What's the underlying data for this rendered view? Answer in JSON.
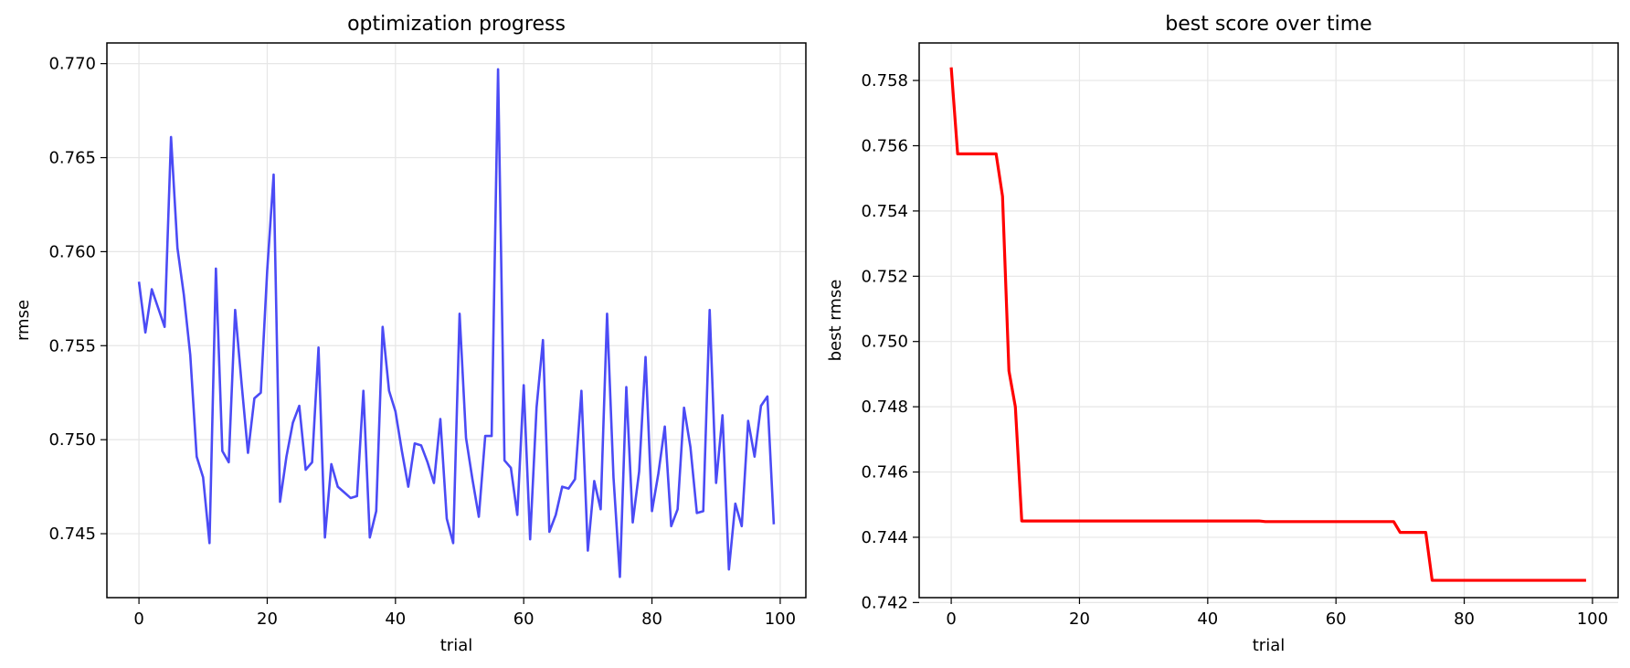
{
  "chart_data": [
    {
      "type": "line",
      "title": "optimization progress",
      "xlabel": "trial",
      "ylabel": "rmse",
      "xlim": [
        -5,
        104
      ],
      "ylim": [
        0.7416,
        0.7711
      ],
      "xticks": [
        0,
        20,
        40,
        60,
        80,
        100
      ],
      "yticks": [
        0.745,
        0.75,
        0.755,
        0.76,
        0.765,
        0.77
      ],
      "ytick_labels": [
        "0.745",
        "0.750",
        "0.755",
        "0.760",
        "0.765",
        "0.770"
      ],
      "grid": true,
      "line_color": "#4b4bf5",
      "x": [
        0,
        1,
        2,
        3,
        4,
        5,
        6,
        7,
        8,
        9,
        10,
        11,
        12,
        13,
        14,
        15,
        16,
        17,
        18,
        19,
        20,
        21,
        22,
        23,
        24,
        25,
        26,
        27,
        28,
        29,
        30,
        31,
        32,
        33,
        34,
        35,
        36,
        37,
        38,
        39,
        40,
        41,
        42,
        43,
        44,
        45,
        46,
        47,
        48,
        49,
        50,
        51,
        52,
        53,
        54,
        55,
        56,
        57,
        58,
        59,
        60,
        61,
        62,
        63,
        64,
        65,
        66,
        67,
        68,
        69,
        70,
        71,
        72,
        73,
        74,
        75,
        76,
        77,
        78,
        79,
        80,
        81,
        82,
        83,
        84,
        85,
        86,
        87,
        88,
        89,
        90,
        91,
        92,
        93,
        94,
        95,
        96,
        97,
        98,
        99
      ],
      "series": [
        {
          "values": [
            0.7584,
            0.7557,
            0.758,
            0.757,
            0.756,
            0.7661,
            0.7602,
            0.7577,
            0.7545,
            0.7491,
            0.748,
            0.7445,
            0.7591,
            0.7494,
            0.7488,
            0.7569,
            0.753,
            0.7493,
            0.7522,
            0.7525,
            0.759,
            0.7641,
            0.7467,
            0.7491,
            0.7509,
            0.7518,
            0.7484,
            0.7488,
            0.7549,
            0.7448,
            0.7487,
            0.7475,
            0.7472,
            0.7469,
            0.747,
            0.7526,
            0.7448,
            0.7462,
            0.756,
            0.7526,
            0.7515,
            0.7494,
            0.7475,
            0.7498,
            0.7497,
            0.7488,
            0.7477,
            0.7511,
            0.7458,
            0.7445,
            0.7567,
            0.7501,
            0.7479,
            0.7459,
            0.7502,
            0.7502,
            0.7697,
            0.7489,
            0.7485,
            0.746,
            0.7529,
            0.7447,
            0.7517,
            0.7553,
            0.7451,
            0.746,
            0.7475,
            0.7474,
            0.7479,
            0.7526,
            0.7441,
            0.7478,
            0.7463,
            0.7567,
            0.748,
            0.7427,
            0.7528,
            0.7456,
            0.7483,
            0.7544,
            0.7462,
            0.7482,
            0.7507,
            0.7454,
            0.7463,
            0.7517,
            0.7496,
            0.7461,
            0.7462,
            0.7569,
            0.7477,
            0.7513,
            0.7431,
            0.7466,
            0.7454,
            0.751,
            0.7491,
            0.7518,
            0.7523,
            0.7455
          ]
        }
      ]
    },
    {
      "type": "line",
      "title": "best score over time",
      "xlabel": "trial",
      "ylabel": "best rmse",
      "xlim": [
        -5,
        104
      ],
      "ylim": [
        0.74215,
        0.75915
      ],
      "xticks": [
        0,
        20,
        40,
        60,
        80,
        100
      ],
      "yticks": [
        0.742,
        0.744,
        0.746,
        0.748,
        0.75,
        0.752,
        0.754,
        0.756,
        0.758
      ],
      "ytick_labels": [
        "0.742",
        "0.744",
        "0.746",
        "0.748",
        "0.750",
        "0.752",
        "0.754",
        "0.756",
        "0.758"
      ],
      "grid": true,
      "line_color": "#ff0000",
      "x": [
        0,
        1,
        7,
        8,
        9,
        10,
        11,
        48,
        49,
        69,
        70,
        74,
        75,
        99
      ],
      "series": [
        {
          "values": [
            0.7584,
            0.75575,
            0.75575,
            0.75445,
            0.7491,
            0.748,
            0.7445,
            0.7445,
            0.74448,
            0.74448,
            0.74415,
            0.74415,
            0.74268,
            0.74268
          ]
        }
      ]
    }
  ]
}
